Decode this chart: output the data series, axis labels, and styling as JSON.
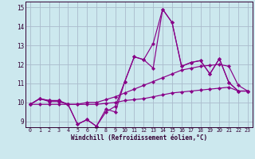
{
  "xlabel": "Windchill (Refroidissement éolien,°C)",
  "background_color": "#cce8ee",
  "line_color": "#880088",
  "grid_color": "#aabbcc",
  "xlim": [
    -0.5,
    23.5
  ],
  "ylim": [
    8.7,
    15.3
  ],
  "yticks": [
    9,
    10,
    11,
    12,
    13,
    14,
    15
  ],
  "xticks": [
    0,
    1,
    2,
    3,
    4,
    5,
    6,
    7,
    8,
    9,
    10,
    11,
    12,
    13,
    14,
    15,
    16,
    17,
    18,
    19,
    20,
    21,
    22,
    23
  ],
  "lines": [
    [
      9.9,
      10.2,
      10.1,
      10.1,
      9.9,
      8.85,
      9.1,
      8.75,
      9.65,
      9.5,
      11.1,
      12.4,
      12.25,
      13.1,
      14.9,
      14.2,
      11.9,
      12.1,
      12.2,
      11.5,
      12.3,
      11.05,
      10.6,
      10.6
    ],
    [
      9.9,
      10.2,
      10.1,
      10.1,
      9.9,
      8.85,
      9.1,
      8.75,
      9.5,
      9.8,
      11.1,
      12.4,
      12.25,
      11.8,
      14.9,
      14.2,
      11.9,
      12.1,
      12.2,
      11.5,
      12.3,
      11.05,
      10.6,
      10.6
    ],
    [
      9.9,
      10.2,
      10.05,
      10.05,
      9.9,
      9.9,
      10.0,
      10.0,
      10.15,
      10.3,
      10.5,
      10.7,
      10.9,
      11.1,
      11.3,
      11.5,
      11.7,
      11.8,
      11.9,
      11.95,
      12.0,
      11.9,
      10.9,
      10.6
    ],
    [
      9.9,
      9.9,
      9.9,
      9.9,
      9.9,
      9.9,
      9.9,
      9.9,
      9.95,
      10.0,
      10.1,
      10.15,
      10.2,
      10.3,
      10.4,
      10.5,
      10.55,
      10.6,
      10.65,
      10.7,
      10.75,
      10.8,
      10.6,
      10.6
    ]
  ]
}
